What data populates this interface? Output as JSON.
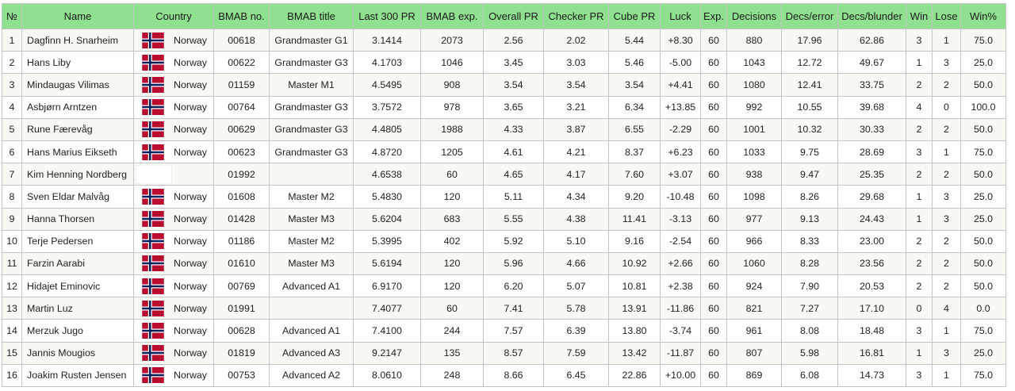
{
  "headers": [
    "№",
    "Name",
    "Country",
    "BMAB no.",
    "BMAB title",
    "Last 300 PR",
    "BMAB exp.",
    "Overall PR",
    "Checker PR",
    "Cube PR",
    "Luck",
    "Exp.",
    "Decisions",
    "Decs/error",
    "Decs/blunder",
    "Win",
    "Lose",
    "Win%"
  ],
  "colors": {
    "header_bg": "#8fe08f",
    "flag_red": "#ba0c2f",
    "flag_blue": "#00205b"
  },
  "rows": [
    {
      "no": "1",
      "name": "Dagfinn H. Snarheim",
      "flag": "norway-flag",
      "country": "Norway",
      "bmab_no": "00618",
      "bmab_title": "Grandmaster G1",
      "last300": "3.1414",
      "bmab_exp": "2073",
      "overall": "2.56",
      "checker": "2.02",
      "cube": "5.44",
      "luck": "+8.30",
      "exp": "60",
      "decisions": "880",
      "decs_error": "17.96",
      "decs_blunder": "62.86",
      "win": "3",
      "lose": "1",
      "winpct": "75.0"
    },
    {
      "no": "2",
      "name": "Hans Liby",
      "flag": "norway-flag",
      "country": "Norway",
      "bmab_no": "00622",
      "bmab_title": "Grandmaster G3",
      "last300": "4.1703",
      "bmab_exp": "1046",
      "overall": "3.45",
      "checker": "3.03",
      "cube": "5.46",
      "luck": "-5.00",
      "exp": "60",
      "decisions": "1043",
      "decs_error": "12.72",
      "decs_blunder": "49.67",
      "win": "1",
      "lose": "3",
      "winpct": "25.0"
    },
    {
      "no": "3",
      "name": "Mindaugas Vilimas",
      "flag": "norway-flag",
      "country": "Norway",
      "bmab_no": "01159",
      "bmab_title": "Master M1",
      "last300": "4.5495",
      "bmab_exp": "908",
      "overall": "3.54",
      "checker": "3.54",
      "cube": "3.54",
      "luck": "+4.41",
      "exp": "60",
      "decisions": "1080",
      "decs_error": "12.41",
      "decs_blunder": "33.75",
      "win": "2",
      "lose": "2",
      "winpct": "50.0"
    },
    {
      "no": "4",
      "name": "Asbjørn Arntzen",
      "flag": "norway-flag",
      "country": "Norway",
      "bmab_no": "00764",
      "bmab_title": "Grandmaster G3",
      "last300": "3.7572",
      "bmab_exp": "978",
      "overall": "3.65",
      "checker": "3.21",
      "cube": "6.34",
      "luck": "+13.85",
      "exp": "60",
      "decisions": "992",
      "decs_error": "10.55",
      "decs_blunder": "39.68",
      "win": "4",
      "lose": "0",
      "winpct": "100.0"
    },
    {
      "no": "5",
      "name": "Rune Færevåg",
      "flag": "norway-flag",
      "country": "Norway",
      "bmab_no": "00629",
      "bmab_title": "Grandmaster G3",
      "last300": "4.4805",
      "bmab_exp": "1988",
      "overall": "4.33",
      "checker": "3.87",
      "cube": "6.55",
      "luck": "-2.29",
      "exp": "60",
      "decisions": "1001",
      "decs_error": "10.32",
      "decs_blunder": "30.33",
      "win": "2",
      "lose": "2",
      "winpct": "50.0"
    },
    {
      "no": "6",
      "name": "Hans Marius Eikseth",
      "flag": "norway-flag",
      "country": "Norway",
      "bmab_no": "00623",
      "bmab_title": "Grandmaster G3",
      "last300": "4.8720",
      "bmab_exp": "1205",
      "overall": "4.61",
      "checker": "4.21",
      "cube": "8.37",
      "luck": "+6.23",
      "exp": "60",
      "decisions": "1033",
      "decs_error": "9.75",
      "decs_blunder": "28.69",
      "win": "3",
      "lose": "1",
      "winpct": "75.0"
    },
    {
      "no": "7",
      "name": "Kim Henning Nordberg",
      "flag": "blank-flag",
      "country": "",
      "bmab_no": "01992",
      "bmab_title": "",
      "last300": "4.6538",
      "bmab_exp": "60",
      "overall": "4.65",
      "checker": "4.17",
      "cube": "7.60",
      "luck": "+3.07",
      "exp": "60",
      "decisions": "938",
      "decs_error": "9.47",
      "decs_blunder": "25.35",
      "win": "2",
      "lose": "2",
      "winpct": "50.0"
    },
    {
      "no": "8",
      "name": "Sven Eldar Malvåg",
      "flag": "norway-flag",
      "country": "Norway",
      "bmab_no": "01608",
      "bmab_title": "Master M2",
      "last300": "5.4830",
      "bmab_exp": "120",
      "overall": "5.11",
      "checker": "4.34",
      "cube": "9.20",
      "luck": "-10.48",
      "exp": "60",
      "decisions": "1098",
      "decs_error": "8.26",
      "decs_blunder": "29.68",
      "win": "1",
      "lose": "3",
      "winpct": "25.0"
    },
    {
      "no": "9",
      "name": "Hanna Thorsen",
      "flag": "norway-flag",
      "country": "Norway",
      "bmab_no": "01428",
      "bmab_title": "Master M3",
      "last300": "5.6204",
      "bmab_exp": "683",
      "overall": "5.55",
      "checker": "4.38",
      "cube": "11.41",
      "luck": "-3.13",
      "exp": "60",
      "decisions": "977",
      "decs_error": "9.13",
      "decs_blunder": "24.43",
      "win": "1",
      "lose": "3",
      "winpct": "25.0"
    },
    {
      "no": "10",
      "name": "Terje Pedersen",
      "flag": "norway-flag",
      "country": "Norway",
      "bmab_no": "01186",
      "bmab_title": "Master M2",
      "last300": "5.3995",
      "bmab_exp": "402",
      "overall": "5.92",
      "checker": "5.10",
      "cube": "9.16",
      "luck": "-2.54",
      "exp": "60",
      "decisions": "966",
      "decs_error": "8.33",
      "decs_blunder": "23.00",
      "win": "2",
      "lose": "2",
      "winpct": "50.0"
    },
    {
      "no": "11",
      "name": "Farzin Aarabi",
      "flag": "norway-flag",
      "country": "Norway",
      "bmab_no": "01610",
      "bmab_title": "Master M3",
      "last300": "5.6194",
      "bmab_exp": "120",
      "overall": "5.96",
      "checker": "4.66",
      "cube": "10.92",
      "luck": "+2.66",
      "exp": "60",
      "decisions": "1060",
      "decs_error": "8.28",
      "decs_blunder": "23.56",
      "win": "2",
      "lose": "2",
      "winpct": "50.0"
    },
    {
      "no": "12",
      "name": "Hidajet Eminovic",
      "flag": "norway-flag",
      "country": "Norway",
      "bmab_no": "00769",
      "bmab_title": "Advanced A1",
      "last300": "6.9170",
      "bmab_exp": "120",
      "overall": "6.20",
      "checker": "5.07",
      "cube": "10.81",
      "luck": "+2.38",
      "exp": "60",
      "decisions": "924",
      "decs_error": "7.90",
      "decs_blunder": "20.53",
      "win": "2",
      "lose": "2",
      "winpct": "50.0"
    },
    {
      "no": "13",
      "name": "Martin Luz",
      "flag": "norway-flag",
      "country": "Norway",
      "bmab_no": "01991",
      "bmab_title": "",
      "last300": "7.4077",
      "bmab_exp": "60",
      "overall": "7.41",
      "checker": "5.78",
      "cube": "13.91",
      "luck": "-11.86",
      "exp": "60",
      "decisions": "821",
      "decs_error": "7.27",
      "decs_blunder": "17.10",
      "win": "0",
      "lose": "4",
      "winpct": "0.0"
    },
    {
      "no": "14",
      "name": "Merzuk Jugo",
      "flag": "norway-flag",
      "country": "Norway",
      "bmab_no": "00628",
      "bmab_title": "Advanced A1",
      "last300": "7.4100",
      "bmab_exp": "244",
      "overall": "7.57",
      "checker": "6.39",
      "cube": "13.80",
      "luck": "-3.74",
      "exp": "60",
      "decisions": "961",
      "decs_error": "8.08",
      "decs_blunder": "18.48",
      "win": "3",
      "lose": "1",
      "winpct": "75.0"
    },
    {
      "no": "15",
      "name": "Jannis Mougios",
      "flag": "norway-flag",
      "country": "Norway",
      "bmab_no": "01819",
      "bmab_title": "Advanced A3",
      "last300": "9.2147",
      "bmab_exp": "135",
      "overall": "8.57",
      "checker": "7.59",
      "cube": "13.42",
      "luck": "-11.87",
      "exp": "60",
      "decisions": "807",
      "decs_error": "5.98",
      "decs_blunder": "16.81",
      "win": "1",
      "lose": "3",
      "winpct": "25.0"
    },
    {
      "no": "16",
      "name": "Joakim Rusten Jensen",
      "flag": "norway-flag",
      "country": "Norway",
      "bmab_no": "00753",
      "bmab_title": "Advanced A2",
      "last300": "8.0610",
      "bmab_exp": "248",
      "overall": "8.66",
      "checker": "6.45",
      "cube": "22.86",
      "luck": "+10.00",
      "exp": "60",
      "decisions": "869",
      "decs_error": "6.08",
      "decs_blunder": "14.73",
      "win": "3",
      "lose": "1",
      "winpct": "75.0"
    }
  ]
}
